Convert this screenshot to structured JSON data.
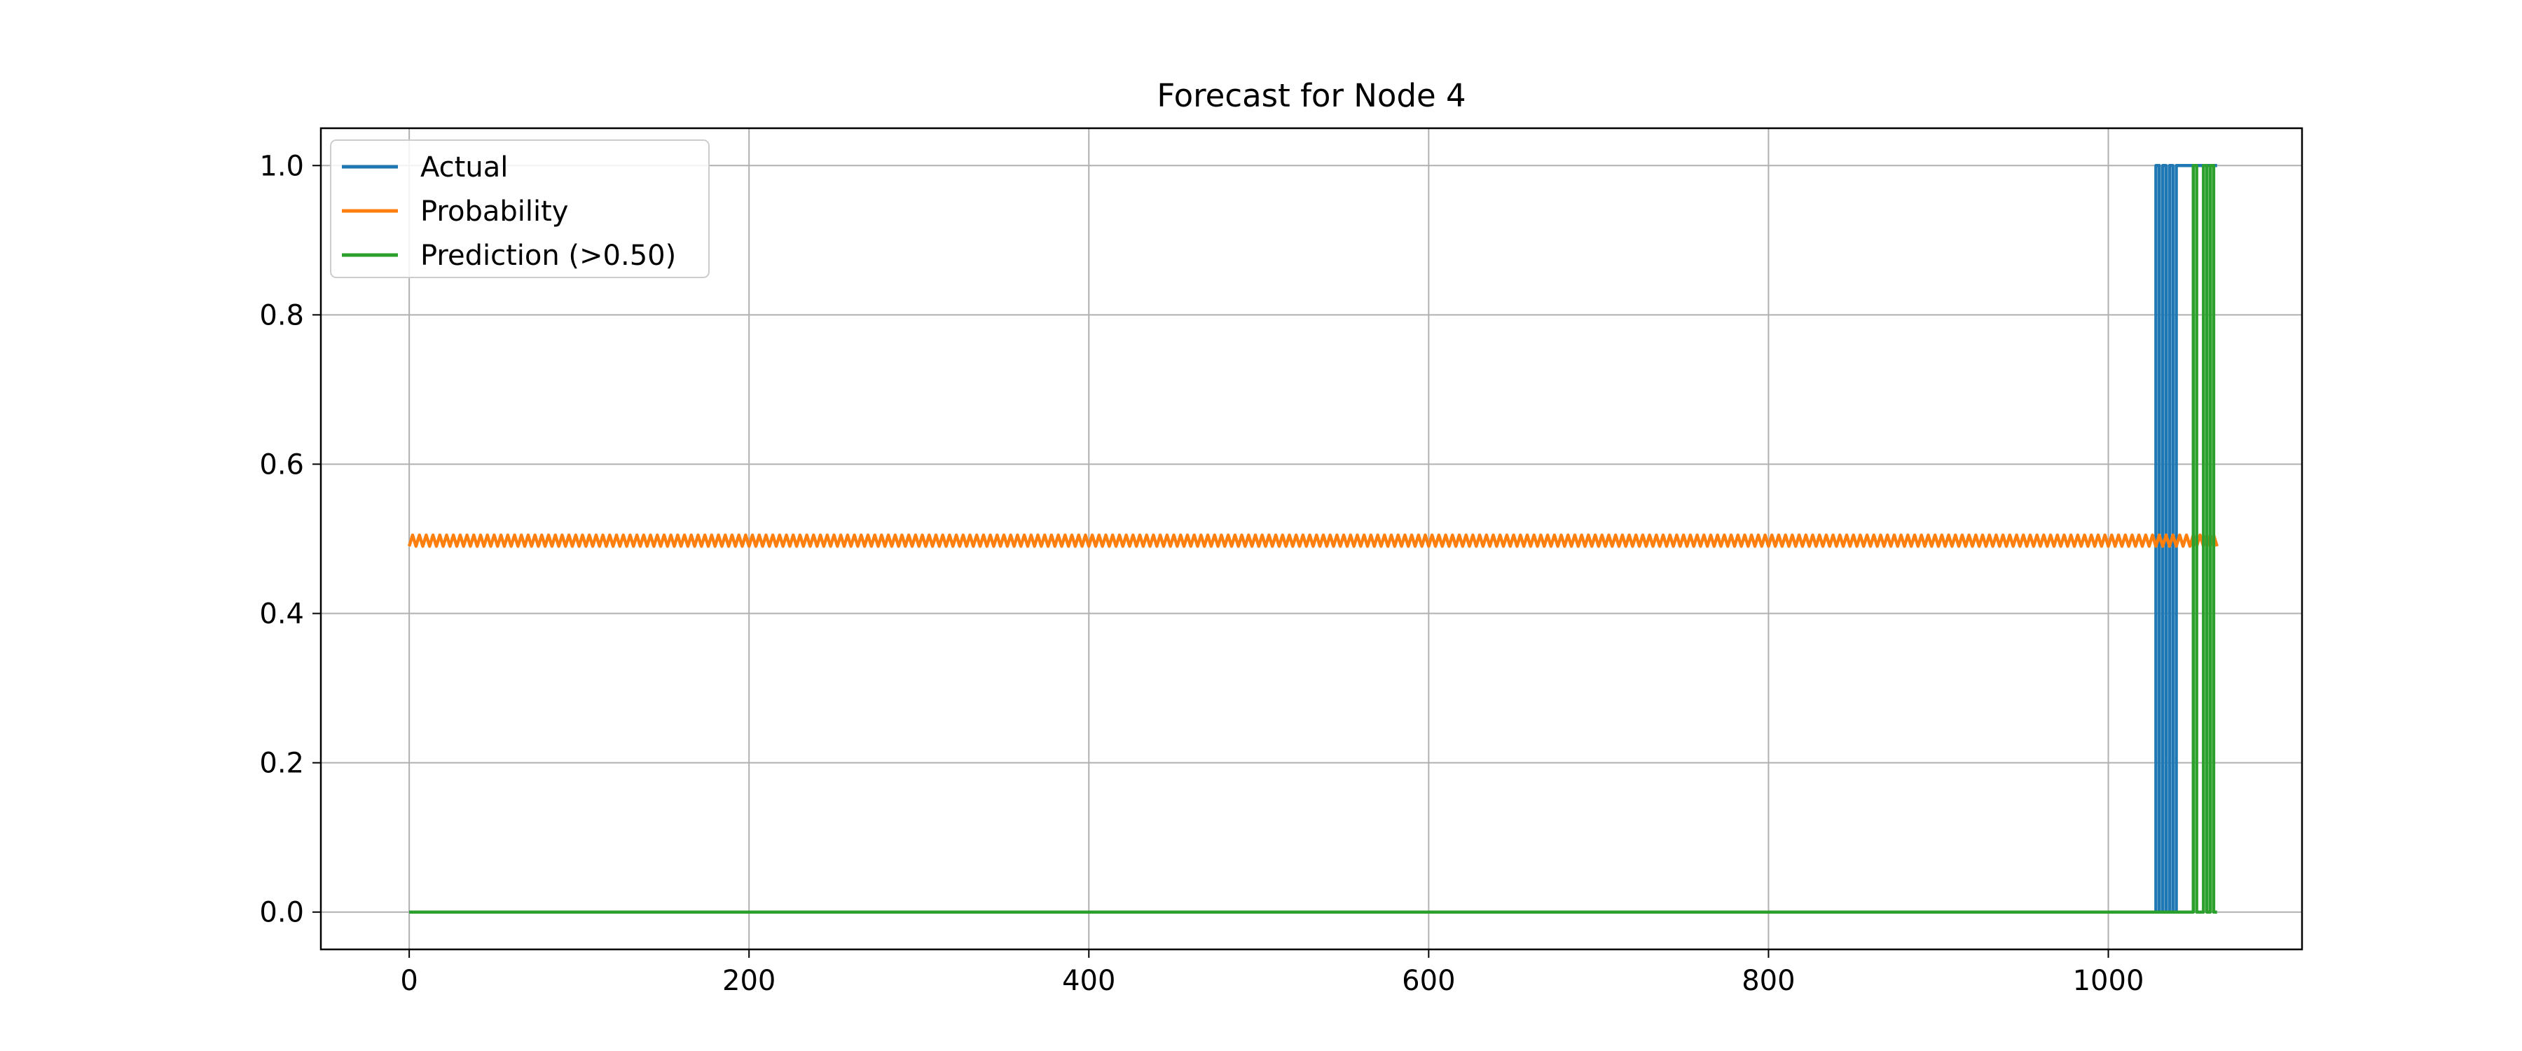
{
  "colors": {
    "actual": "#1f77b4",
    "probability": "#ff7f0e",
    "prediction": "#2ca02c",
    "grid": "#b0b0b0",
    "axes": "#000000"
  },
  "chart_data": {
    "type": "line",
    "title": "Forecast for Node 4",
    "xlabel": "",
    "ylabel": "",
    "xlim": [
      -52,
      1114
    ],
    "ylim": [
      -0.05,
      1.05
    ],
    "x_ticks": [
      0,
      200,
      400,
      600,
      800,
      1000
    ],
    "y_ticks": [
      0.0,
      0.2,
      0.4,
      0.6,
      0.8,
      1.0
    ],
    "x_tick_labels": [
      "0",
      "200",
      "400",
      "600",
      "800",
      "1000"
    ],
    "y_tick_labels": [
      "0.0",
      "0.2",
      "0.4",
      "0.6",
      "0.8",
      "1.0"
    ],
    "grid": true,
    "legend_position": "upper-left",
    "series": [
      {
        "name": "Actual",
        "color": "#1f77b4",
        "shape": "step",
        "x": [
          0,
          1028,
          1028,
          1030,
          1030,
          1032,
          1032,
          1034,
          1034,
          1036,
          1036,
          1038,
          1038,
          1040,
          1040,
          1064
        ],
        "y": [
          0,
          0,
          1,
          1,
          0,
          0,
          1,
          1,
          0,
          0,
          1,
          1,
          0,
          0,
          1,
          1
        ]
      },
      {
        "name": "Probability",
        "color": "#ff7f0e",
        "shape": "oscillating",
        "x_start": 0,
        "x_end": 1064,
        "low": 0.49,
        "high": 0.505
      },
      {
        "name": "Prediction (>0.50)",
        "color": "#2ca02c",
        "shape": "step",
        "x": [
          0,
          1050,
          1050,
          1052,
          1052,
          1056,
          1056,
          1058,
          1058,
          1060,
          1060,
          1062,
          1062,
          1064
        ],
        "y": [
          0,
          0,
          1,
          1,
          0,
          0,
          1,
          1,
          0,
          0,
          1,
          1,
          0,
          0
        ]
      }
    ]
  }
}
